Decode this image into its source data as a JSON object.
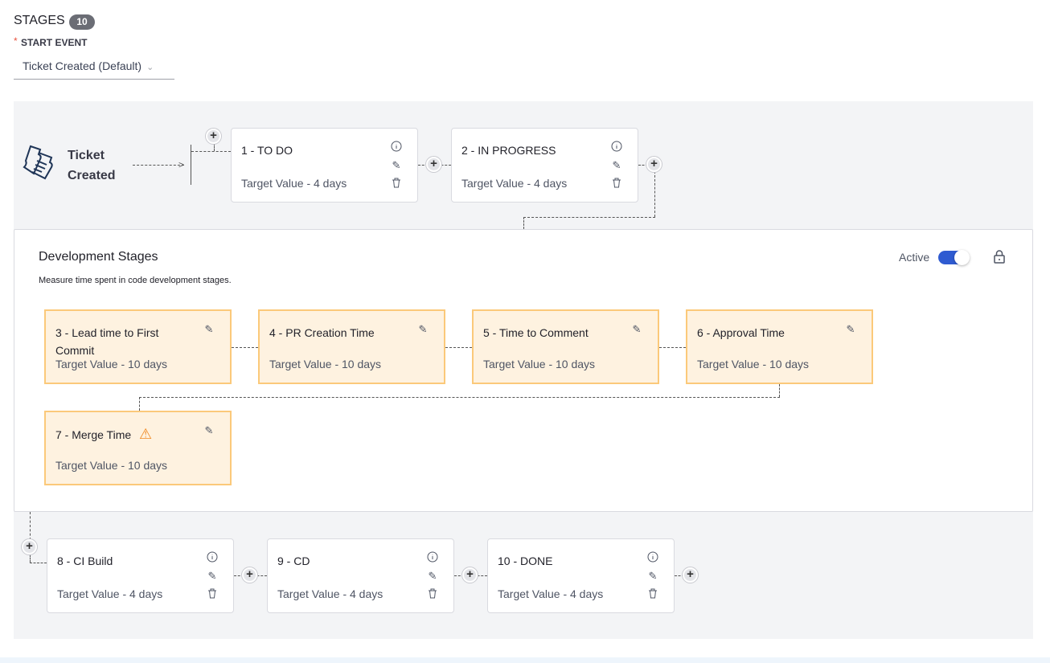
{
  "header": {
    "title": "STAGES",
    "count": "10",
    "required_mark": "*",
    "start_event_label": "START EVENT",
    "start_event_value": "Ticket Created (Default)"
  },
  "start_node": {
    "line1": "Ticket",
    "line2": "Created",
    "icon": "ticket-icon"
  },
  "top_stages": [
    {
      "name": "1 - TO DO",
      "target": "Target Value - 4 days"
    },
    {
      "name": "2 - IN PROGRESS",
      "target": "Target Value - 4 days"
    }
  ],
  "group": {
    "title": "Development Stages",
    "subtitle": "Measure time spent in code development stages.",
    "active_label": "Active",
    "active": true,
    "accent": "#2f5bd1",
    "stages": [
      {
        "name": "3 - Lead time to First Commit",
        "target": "Target Value - 10 days"
      },
      {
        "name": "4 - PR Creation Time",
        "target": "Target Value - 10 days"
      },
      {
        "name": "5 - Time to Comment",
        "target": "Target Value - 10 days"
      },
      {
        "name": "6 - Approval Time",
        "target": "Target Value - 10 days"
      },
      {
        "name": "7 - Merge Time",
        "target": "Target Value - 10 days",
        "warning": true
      }
    ]
  },
  "bottom_stages": [
    {
      "name": "8 - CI Build",
      "target": "Target Value - 4 days"
    },
    {
      "name": "9 - CD",
      "target": "Target Value - 4 days"
    },
    {
      "name": "10 - DONE",
      "target": "Target Value - 4 days"
    }
  ]
}
